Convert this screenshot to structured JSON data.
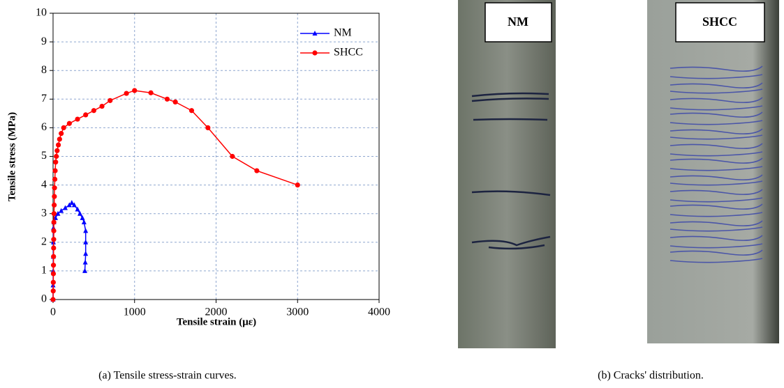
{
  "chart_data": {
    "type": "line",
    "xlabel": "Tensile strain (με)",
    "ylabel": "Tensile stress (MPa)",
    "xlim": [
      0,
      4000
    ],
    "xticks": [
      0,
      1000,
      2000,
      3000,
      4000
    ],
    "ylim": [
      0,
      10
    ],
    "yticks": [
      0,
      1,
      2,
      3,
      4,
      5,
      6,
      7,
      8,
      9,
      10
    ],
    "grid": true,
    "legend": "upper right",
    "series": [
      {
        "name": "NM",
        "color": "#0000ff",
        "marker": "triangle",
        "x": [
          0,
          0,
          2,
          3,
          4,
          5,
          10,
          30,
          60,
          100,
          150,
          200,
          230,
          260,
          300,
          330,
          360,
          380,
          400,
          400,
          400,
          395,
          390
        ],
        "values": [
          0,
          0.5,
          1,
          1.5,
          2,
          2.5,
          2.7,
          2.85,
          3.0,
          3.1,
          3.2,
          3.3,
          3.38,
          3.3,
          3.15,
          3.0,
          2.85,
          2.7,
          2.4,
          2.0,
          1.6,
          1.3,
          1.0
        ]
      },
      {
        "name": "SHCC",
        "color": "#ff0000",
        "marker": "circle",
        "x": [
          0,
          2,
          3,
          4,
          5,
          6,
          7,
          8,
          9,
          10,
          12,
          14,
          16,
          18,
          22,
          26,
          32,
          40,
          50,
          65,
          80,
          100,
          130,
          200,
          300,
          400,
          500,
          600,
          700,
          900,
          1000,
          1200,
          1400,
          1500,
          1700,
          1900,
          2200,
          2500,
          3000
        ],
        "values": [
          0,
          0.3,
          0.6,
          0.9,
          1.2,
          1.5,
          1.8,
          2.1,
          2.4,
          2.7,
          3.0,
          3.3,
          3.6,
          3.9,
          4.2,
          4.5,
          4.8,
          5.0,
          5.2,
          5.4,
          5.6,
          5.8,
          6.0,
          6.15,
          6.3,
          6.45,
          6.6,
          6.75,
          6.95,
          7.2,
          7.3,
          7.22,
          7.0,
          6.9,
          6.6,
          6.0,
          5.0,
          4.5,
          4.0
        ]
      }
    ]
  },
  "photos": {
    "left": "NM",
    "right": "SHCC"
  },
  "captions": {
    "a": "(a)  Tensile stress-strain curves.",
    "b": "(b)  Cracks' distribution."
  }
}
